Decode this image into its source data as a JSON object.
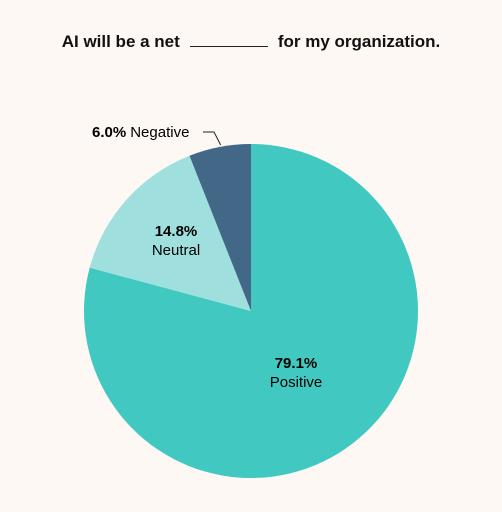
{
  "title": {
    "before": "AI will be a net",
    "after": "for my organization."
  },
  "chart_data": {
    "type": "pie",
    "title": "AI will be a net ________ for my organization.",
    "slices": [
      {
        "label": "Positive",
        "value": 79.1,
        "display": "79.1%",
        "color": "#41c9c1"
      },
      {
        "label": "Neutral",
        "value": 14.8,
        "display": "14.8%",
        "color": "#9fe0df"
      },
      {
        "label": "Negative",
        "value": 6.0,
        "display": "6.0%",
        "color": "#436887"
      }
    ],
    "start": "12 o'clock",
    "direction": "clockwise"
  }
}
